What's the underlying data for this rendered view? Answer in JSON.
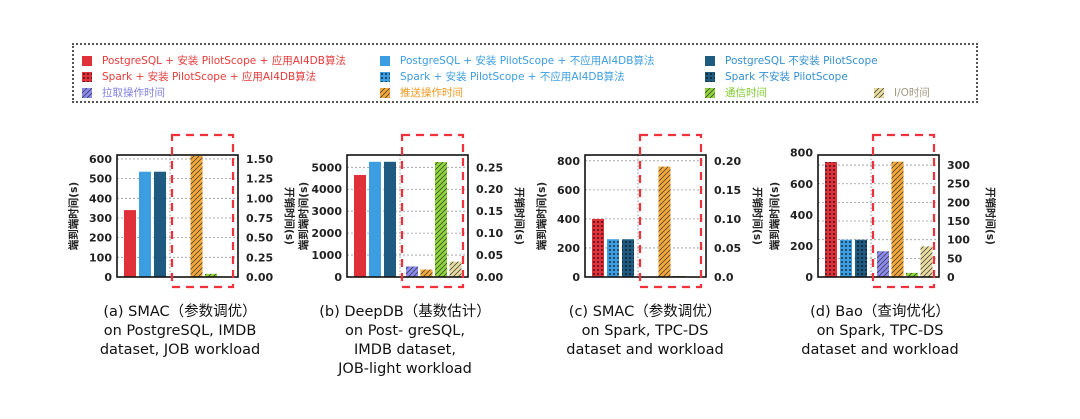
{
  "legend": [
    {
      "label": "PostgreSQL + 安装 PilotScope + 应用AI4DB算法",
      "color": "#e0303a",
      "text_color": "#e83a3a",
      "pattern": "solid"
    },
    {
      "label": "PostgreSQL + 安装 PilotScope + 不应用AI4DB算法",
      "color": "#3c9de0",
      "text_color": "#3c9de0",
      "pattern": "solid"
    },
    {
      "label": "PostgreSQL 不安装 PilotScope",
      "color": "#1f5a80",
      "text_color": "#3590d0",
      "pattern": "solid"
    },
    {
      "label": "Spark + 安装 PilotScope + 应用AI4DB算法",
      "color": "#e0303a",
      "text_color": "#e83a3a",
      "pattern": "dots"
    },
    {
      "label": "Spark + 安装 PilotScope + 不应用AI4DB算法",
      "color": "#3c9de0",
      "text_color": "#3c9de0",
      "pattern": "dots"
    },
    {
      "label": "Spark 不安装 PilotScope",
      "color": "#1f5a80",
      "text_color": "#3590d0",
      "pattern": "dots"
    },
    {
      "label": "拉取操作时间",
      "color": "#8a8af0",
      "text_color": "#8080e0",
      "pattern": "hatch"
    },
    {
      "label": "推送操作时间",
      "color": "#f5a83a",
      "text_color": "#f09a20",
      "pattern": "hatch"
    },
    {
      "label": "通信时间",
      "color": "#8ed43a",
      "text_color": "#7fcc30",
      "pattern": "hatch"
    },
    {
      "label": "I/O时间",
      "color": "#e8dca0",
      "text_color": "#a09a80",
      "pattern": "hatch"
    }
  ],
  "chart_data": [
    {
      "type": "bar",
      "caption": [
        "(a) SMAC（参数调优）",
        "on PostgreSQL, IMDB",
        "dataset, JOB workload"
      ],
      "ylabel": "端到端时间(s)",
      "ylabel_right": "开销时间(s)",
      "grid": true,
      "ylim": [
        0,
        620
      ],
      "yticks": [
        "0",
        "100",
        "200",
        "300",
        "400",
        "500",
        "600"
      ],
      "ylim_right": [
        0,
        1.55
      ],
      "yticks_right": [
        "0.00",
        "0.25",
        "0.50",
        "0.75",
        "1.00",
        "1.25",
        "1.50"
      ],
      "pattern": "solid",
      "end_to_end": [
        340,
        535,
        535
      ],
      "overhead": [
        0,
        1.54,
        0.04,
        0
      ]
    },
    {
      "type": "bar",
      "caption": [
        "(b) DeepDB（基数估计）",
        "on Post- greSQL,",
        "IMDB dataset,",
        "JOB-light workload"
      ],
      "ylabel": "端到端时间(s)",
      "ylabel_right": "开销时间(s)",
      "grid": true,
      "ylim": [
        0,
        5560
      ],
      "yticks": [
        "0",
        "1000",
        "2000",
        "3000",
        "4000",
        "5000"
      ],
      "ylim_right": [
        0,
        0.278
      ],
      "yticks_right": [
        "0.00",
        "0.05",
        "0.10",
        "0.15",
        "0.20",
        "0.25"
      ],
      "pattern": "solid",
      "end_to_end": [
        4650,
        5250,
        5250
      ],
      "overhead": [
        0.024,
        0.017,
        0.262,
        0.035
      ]
    },
    {
      "type": "bar",
      "caption": [
        "(c) SMAC（参数调优）",
        "on Spark, TPC-DS",
        "dataset and workload"
      ],
      "ylabel": "端到端时间(s)",
      "ylabel_right": "开销时间(s)",
      "grid": true,
      "ylim": [
        0,
        840
      ],
      "yticks": [
        "0",
        "200",
        "400",
        "600",
        "800"
      ],
      "ylim_right": [
        0,
        0.21
      ],
      "yticks_right": [
        "0.0",
        "0.05",
        "0.10",
        "0.15",
        "0.20"
      ],
      "pattern": "dots",
      "end_to_end": [
        400,
        260,
        260
      ],
      "overhead": [
        0,
        0.19,
        0.001,
        0
      ]
    },
    {
      "type": "bar",
      "caption": [
        "(d) Bao（查询优化）",
        "on Spark, TPC-DS",
        "dataset and workload"
      ],
      "ylabel": "端到端时间(s)",
      "ylabel_right": "开销时间(s)",
      "grid": true,
      "ylim": [
        0,
        785
      ],
      "yticks": [
        "0",
        "200",
        "400",
        "600",
        "800"
      ],
      "ylim_right": [
        0,
        327
      ],
      "yticks_right": [
        "0",
        "50",
        "100",
        "150",
        "200",
        "250",
        "300"
      ],
      "pattern": "dots",
      "end_to_end": [
        740,
        240,
        240
      ],
      "overhead": [
        69,
        309,
        11,
        82
      ]
    }
  ]
}
